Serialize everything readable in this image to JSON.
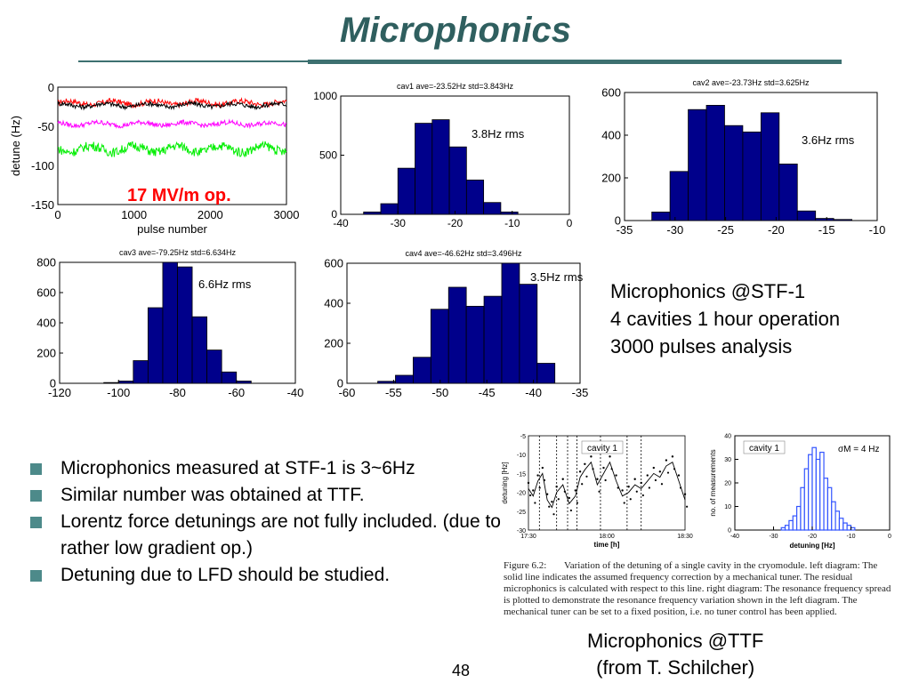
{
  "slide": {
    "title": "Microphonics",
    "page_number": "48",
    "op_label": "17 MV/m op.",
    "info_lines": [
      "Microphonics @STF-1",
      "4 cavities 1 hour operation",
      "3000 pulses analysis"
    ],
    "bullets": [
      "Microphonics measured at STF-1 is 3~6Hz",
      "Similar number was obtained at TTF.",
      "Lorentz force detunings are not fully included. (due to rather low gradient op.)",
      "Detuning due to LFD should be studied."
    ],
    "ttf_label_line1": "Microphonics @TTF",
    "ttf_label_line2": "(from T. Schilcher)",
    "ttf_caption": {
      "label": "Figure 6.2:",
      "text": "Variation of the detuning of a single cavity in the cryomodule. left diagram: The solid line indicates the assumed frequency correction by a mechanical tuner. The residual microphonics is calculated with respect to this line. right diagram: The resonance frequency spread is plotted to demonstrate the resonance frequency variation shown in the left diagram. The mechanical tuner can be set to a fixed position, i.e. no tuner control has been applied."
    }
  },
  "colors": {
    "bar_fill": "#00008b",
    "title": "#2f5f5f",
    "accent_red": "#ff0000",
    "bullet": "#4d8a8a"
  },
  "chart_data": [
    {
      "type": "line",
      "xlabel": "pulse number",
      "ylabel": "detune (Hz)",
      "xlim": [
        0,
        3000
      ],
      "ylim": [
        -150,
        0
      ],
      "xticks": [
        0,
        1000,
        2000,
        3000
      ],
      "yticks": [
        0,
        -50,
        -100,
        -150
      ],
      "series": [
        {
          "color": "#ff0000",
          "mean": -20,
          "band": 7
        },
        {
          "color": "#000000",
          "mean": -23,
          "band": 6
        },
        {
          "color": "#ff00ff",
          "mean": -47,
          "band": 6
        },
        {
          "color": "#00ee00",
          "mean": -79,
          "band": 12
        }
      ]
    },
    {
      "type": "bar",
      "title": "cav1 ave=-23.52Hz std=3.843Hz",
      "annotation": "3.8Hz rms",
      "xlim": [
        -40,
        0
      ],
      "ylim": [
        0,
        1000
      ],
      "xticks": [
        -40,
        -30,
        -20,
        -10,
        0
      ],
      "yticks": [
        0,
        500,
        1000
      ],
      "bin_width": 3,
      "bin_centers": [
        -34.5,
        -31.5,
        -28.5,
        -25.5,
        -22.5,
        -19.5,
        -16.5,
        -13.5,
        -10.5
      ],
      "values": [
        20,
        90,
        390,
        770,
        800,
        570,
        290,
        100,
        20
      ]
    },
    {
      "type": "bar",
      "title": "cav2 ave=-23.73Hz std=3.625Hz",
      "annotation": "3.6Hz rms",
      "xlim": [
        -35,
        -10
      ],
      "ylim": [
        0,
        600
      ],
      "xticks": [
        -35,
        -30,
        -25,
        -20,
        -15,
        -10
      ],
      "yticks": [
        0,
        200,
        400,
        600
      ],
      "bin_width": 1.8,
      "bin_centers": [
        -31.4,
        -29.6,
        -27.8,
        -26.0,
        -24.2,
        -22.4,
        -20.6,
        -18.8,
        -17.0,
        -15.2,
        -13.4
      ],
      "values": [
        40,
        230,
        520,
        540,
        445,
        415,
        505,
        265,
        45,
        10,
        5
      ]
    },
    {
      "type": "bar",
      "title": "cav3 ave=-79.25Hz std=6.634Hz",
      "annotation": "6.6Hz rms",
      "xlim": [
        -120,
        -40
      ],
      "ylim": [
        0,
        800
      ],
      "xticks": [
        -120,
        -100,
        -80,
        -60,
        -40
      ],
      "yticks": [
        0,
        200,
        400,
        600,
        800
      ],
      "bin_width": 5,
      "bin_centers": [
        -102.5,
        -97.5,
        -92.5,
        -87.5,
        -82.5,
        -77.5,
        -72.5,
        -67.5,
        -62.5,
        -57.5
      ],
      "values": [
        5,
        15,
        150,
        500,
        800,
        770,
        440,
        220,
        75,
        15
      ]
    },
    {
      "type": "bar",
      "title": "cav4 ave=-46.62Hz std=3.496Hz",
      "annotation": "3.5Hz rms",
      "xlim": [
        -60,
        -35
      ],
      "ylim": [
        0,
        600
      ],
      "xticks": [
        -60,
        -55,
        -50,
        -45,
        -40,
        -35
      ],
      "yticks": [
        0,
        200,
        400,
        600
      ],
      "bin_width": 1.9,
      "bin_centers": [
        -55.75,
        -53.85,
        -51.95,
        -50.05,
        -48.15,
        -46.25,
        -44.35,
        -42.45,
        -40.55,
        -38.65
      ],
      "values": [
        10,
        40,
        130,
        370,
        480,
        385,
        435,
        600,
        495,
        100
      ]
    },
    {
      "type": "scatter",
      "label": "cavity 1",
      "xlabel": "time [h]",
      "ylabel": "detuning [Hz]",
      "xticks": [
        "17:30",
        "18:00",
        "18:30"
      ],
      "yticks": [
        -30,
        -25,
        -20,
        -15,
        -10,
        -5
      ],
      "ylim": [
        -30,
        -5
      ],
      "points": [
        [
          0.0,
          -19
        ],
        [
          0.03,
          -21
        ],
        [
          0.06,
          -17
        ],
        [
          0.09,
          -15
        ],
        [
          0.12,
          -22
        ],
        [
          0.15,
          -24
        ],
        [
          0.18,
          -20
        ],
        [
          0.22,
          -18
        ],
        [
          0.26,
          -23
        ],
        [
          0.3,
          -21
        ],
        [
          0.33,
          -16
        ],
        [
          0.36,
          -14
        ],
        [
          0.4,
          -12
        ],
        [
          0.44,
          -18
        ],
        [
          0.48,
          -15
        ],
        [
          0.52,
          -12
        ],
        [
          0.56,
          -17
        ],
        [
          0.6,
          -21
        ],
        [
          0.64,
          -20
        ],
        [
          0.68,
          -18
        ],
        [
          0.72,
          -19
        ],
        [
          0.76,
          -17
        ],
        [
          0.8,
          -15
        ],
        [
          0.84,
          -16
        ],
        [
          0.88,
          -13
        ],
        [
          0.92,
          -12
        ],
        [
          0.96,
          -17
        ],
        [
          1.0,
          -22
        ]
      ]
    },
    {
      "type": "bar",
      "label": "cavity 1",
      "sigma_label": "σM = 4 Hz",
      "xlabel": "detuning [Hz]",
      "ylabel": "no. of measurements",
      "xlim": [
        -40,
        0
      ],
      "ylim": [
        0,
        40
      ],
      "xticks": [
        -40,
        -30,
        -20,
        -10,
        0
      ],
      "yticks": [
        0,
        10,
        20,
        30,
        40
      ],
      "bin_width": 1,
      "bin_centers": [
        -27.5,
        -26.5,
        -25.5,
        -24.5,
        -23.5,
        -22.5,
        -21.5,
        -20.5,
        -19.5,
        -18.5,
        -17.5,
        -16.5,
        -15.5,
        -14.5,
        -13.5,
        -12.5,
        -11.5,
        -10.5,
        -9.5
      ],
      "values": [
        1,
        2,
        4,
        6,
        10,
        18,
        26,
        32,
        35,
        30,
        33,
        22,
        18,
        12,
        8,
        5,
        3,
        2,
        1
      ]
    }
  ]
}
